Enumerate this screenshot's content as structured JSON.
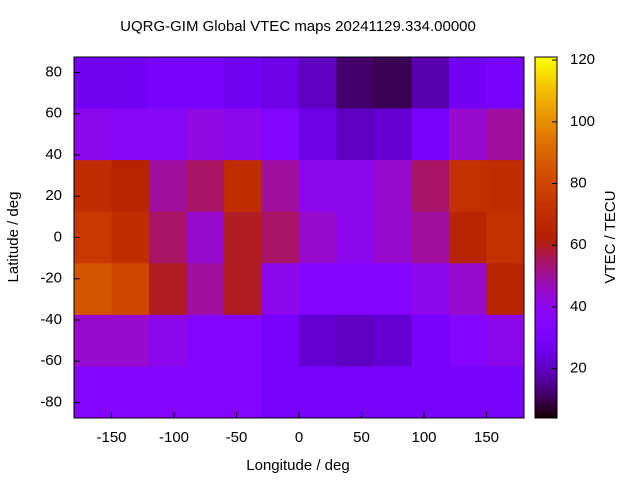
{
  "chart_data": {
    "type": "heatmap",
    "title": "UQRG-GIM Global VTEC maps 20241129.334.00000",
    "x_label": "Longitude / deg",
    "y_label": "Latitude / deg",
    "colorbar_label": "VTEC / TECU",
    "x": [
      -165,
      -135,
      -105,
      -75,
      -45,
      -15,
      15,
      45,
      75,
      105,
      135,
      165
    ],
    "y": [
      75,
      50,
      25,
      0,
      -25,
      -50,
      -75
    ],
    "z": [
      [
        28,
        28,
        30,
        30,
        28,
        25,
        20,
        12,
        10,
        18,
        28,
        30
      ],
      [
        40,
        38,
        38,
        42,
        40,
        35,
        25,
        20,
        22,
        30,
        45,
        50
      ],
      [
        70,
        65,
        50,
        55,
        70,
        50,
        40,
        40,
        45,
        55,
        72,
        70
      ],
      [
        75,
        70,
        55,
        45,
        60,
        55,
        45,
        40,
        45,
        50,
        65,
        72
      ],
      [
        85,
        80,
        60,
        50,
        60,
        40,
        35,
        35,
        35,
        40,
        45,
        65
      ],
      [
        45,
        45,
        40,
        35,
        35,
        30,
        22,
        20,
        22,
        30,
        35,
        40
      ],
      [
        35,
        35,
        35,
        35,
        35,
        30,
        30,
        30,
        30,
        30,
        30,
        30
      ]
    ],
    "xlim": [
      -180,
      180
    ],
    "ylim": [
      -87.5,
      87.5
    ],
    "xticks": [
      -150,
      -100,
      -50,
      0,
      50,
      100,
      150
    ],
    "yticks": [
      -80,
      -60,
      -40,
      -20,
      0,
      20,
      40,
      60,
      80
    ],
    "clim": [
      4,
      121
    ],
    "cticks": [
      20,
      40,
      60,
      80,
      100,
      120
    ],
    "colormap": "gnuplot"
  }
}
